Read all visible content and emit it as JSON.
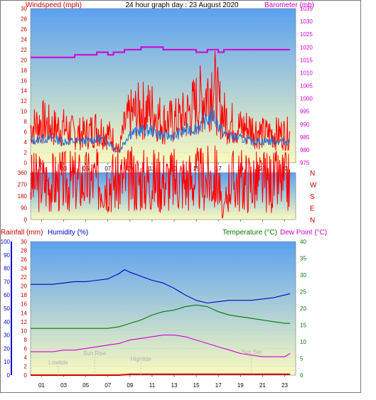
{
  "header": {
    "left_label": "Windspeed (mph)",
    "center_label": "24 hour graph day : 23 August 2020",
    "right_label": "Barometer (mb)"
  },
  "colors": {
    "wind": "#ff0000",
    "gust_alt": "#1e74d6",
    "barometer": "#d400d4",
    "rain": "#d00000",
    "humidity": "#0000cc",
    "temperature": "#007a00",
    "dewpoint": "#d400d4",
    "sky_top": "#5aa0f0",
    "sky_bottom": "#fafabe"
  },
  "x_ticks": [
    "01",
    "03",
    "05",
    "07",
    "09",
    "11",
    "13",
    "15",
    "17",
    "19",
    "21",
    "23"
  ],
  "chart_data": [
    {
      "type": "line",
      "x_hours": [
        0,
        1,
        2,
        3,
        4,
        5,
        6,
        7,
        7.5,
        8,
        8.5,
        9,
        10,
        11,
        12,
        13,
        14,
        15,
        16,
        16.5,
        17,
        17.5,
        18,
        19,
        20,
        21,
        22,
        23,
        23.5
      ],
      "series": [
        {
          "name": "Windspeed",
          "axis": "left",
          "values": [
            6,
            7,
            6,
            6,
            5,
            5,
            6,
            5,
            4,
            2,
            6,
            8,
            9,
            9,
            7,
            7,
            8,
            10,
            12,
            14,
            10,
            8,
            7,
            6,
            6,
            5,
            5,
            5,
            5
          ]
        },
        {
          "name": "Average",
          "axis": "left",
          "values": [
            4,
            4.5,
            4.5,
            4,
            4,
            4,
            4.5,
            4,
            3,
            2,
            4,
            5.5,
            6,
            6,
            5,
            5,
            6,
            6.5,
            8,
            9,
            7,
            5.5,
            5,
            4.5,
            4,
            4,
            4,
            4,
            4
          ]
        },
        {
          "name": "Barometer",
          "axis": "right",
          "values": [
            1016,
            1016,
            1016,
            1016,
            1017,
            1017,
            1018,
            1017,
            1018,
            1018,
            1019,
            1019,
            1020,
            1020,
            1019,
            1019,
            1019,
            1018,
            1019,
            1019,
            1018,
            1019,
            1019,
            1019,
            1019,
            1019,
            1019,
            1019,
            1019
          ]
        }
      ],
      "ylim_left": [
        0,
        30
      ],
      "ylim_right": [
        975,
        1035
      ],
      "left_ticks": [
        "0",
        "2",
        "4",
        "6",
        "8",
        "10",
        "12",
        "14",
        "16",
        "18",
        "20",
        "22",
        "24",
        "26",
        "28",
        "30"
      ],
      "right_ticks": [
        "975",
        "980",
        "985",
        "990",
        "995",
        "1000",
        "1005",
        "1010",
        "1015",
        "1020",
        "1025",
        "1030",
        "1035"
      ]
    },
    {
      "type": "line",
      "x_hours": [
        0,
        2,
        4,
        6,
        8,
        10,
        12,
        14,
        16,
        17,
        17.4,
        18,
        20,
        22,
        23.5
      ],
      "series": [
        {
          "name": "Direction",
          "values": [
            240,
            245,
            248,
            252,
            255,
            258,
            258,
            255,
            262,
            270,
            10,
            255,
            248,
            245,
            240
          ]
        }
      ],
      "ylim": [
        0,
        360
      ],
      "left_ticks": [
        "0",
        "90",
        "180",
        "270",
        "360"
      ],
      "compass": [
        "N",
        "W",
        "S",
        "E",
        "N"
      ]
    },
    {
      "type": "line",
      "x_hours": [
        0,
        1,
        2,
        3,
        4,
        5,
        6,
        7,
        8,
        8.5,
        9,
        10,
        11,
        12,
        13,
        14,
        15,
        16,
        17,
        18,
        19,
        20,
        21,
        22,
        23,
        23.5
      ],
      "series": [
        {
          "name": "Humidity",
          "axis": "humidity",
          "values": [
            68,
            68,
            68,
            69,
            70,
            70,
            71,
            72,
            76,
            79,
            77,
            74,
            71,
            69,
            65,
            60,
            56,
            54,
            55,
            56,
            56,
            56,
            57,
            58,
            60,
            61
          ]
        },
        {
          "name": "Temperature",
          "axis": "temp",
          "values": [
            14,
            14,
            14,
            14,
            14,
            14,
            14,
            14,
            14.5,
            15,
            15.5,
            16.5,
            18,
            19,
            19.5,
            20.5,
            21,
            20.5,
            19,
            18,
            17.5,
            17,
            16.5,
            16,
            15.5,
            15.5
          ]
        },
        {
          "name": "Dew Point",
          "axis": "temp",
          "values": [
            7,
            7,
            7,
            7.5,
            7.5,
            8,
            8.5,
            9,
            9.5,
            10,
            10.5,
            11,
            11.5,
            12,
            12,
            11.5,
            10.5,
            9.5,
            8.5,
            7.5,
            6.5,
            6,
            5.5,
            5.5,
            5.5,
            6.5
          ]
        },
        {
          "name": "Rainfall",
          "axis": "rain",
          "values": [
            0,
            0,
            0,
            0,
            0,
            0,
            0,
            0,
            0,
            0.1,
            0.2,
            0.2,
            0.2,
            0.2,
            0.2,
            0.2,
            0.2,
            0.2,
            0.2,
            0.2,
            0.2,
            0.2,
            0.2,
            0.2,
            0.2,
            0.2
          ]
        }
      ],
      "rain_label": "Rainfall (mm)",
      "humidity_label": "Humidity (%)",
      "temp_label": "Temperature (°C)",
      "dew_label": "Dew Point (°C)",
      "rain_ticks": [
        "0",
        "2",
        "4",
        "6",
        "8",
        "10",
        "12",
        "14",
        "16",
        "18",
        "20",
        "22",
        "24",
        "26",
        "28",
        "30"
      ],
      "humidity_ticks": [
        "0",
        "10",
        "20",
        "30",
        "40",
        "50",
        "60",
        "70",
        "80",
        "90",
        "100"
      ],
      "temp_ticks": [
        "0",
        "5",
        "10",
        "15",
        "20",
        "25",
        "30",
        "35",
        "40"
      ],
      "annotations": [
        {
          "text": "Lowtide",
          "hour": 2.5
        },
        {
          "text": "Sun Rise",
          "hour": 5.8
        },
        {
          "text": "Hightide",
          "hour": 10.0
        },
        {
          "text": "Sun Set",
          "hour": 20.0
        }
      ]
    }
  ]
}
